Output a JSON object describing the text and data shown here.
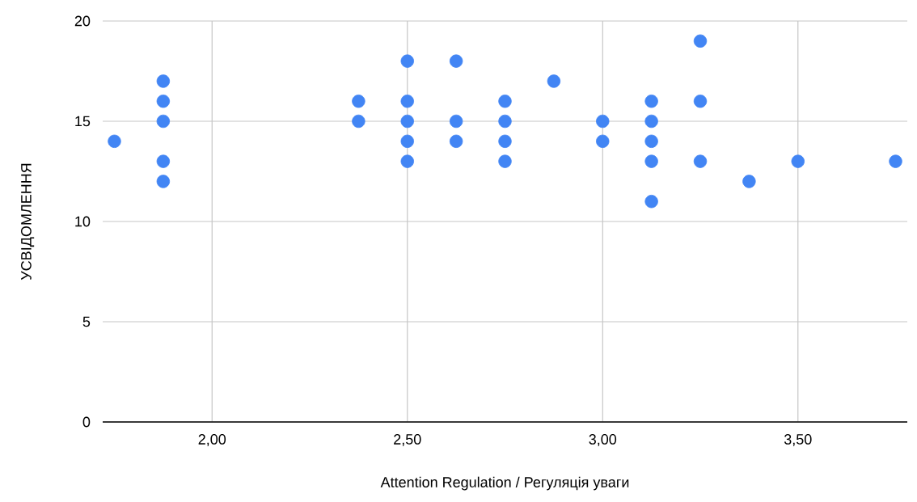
{
  "chart_data": {
    "type": "scatter",
    "xlabel": "Attention Regulation / Регуляція уваги",
    "ylabel": "УСВІДОМЛЕННЯ",
    "x": [
      1.75,
      1.875,
      1.875,
      1.875,
      1.875,
      1.875,
      2.375,
      2.375,
      2.5,
      2.5,
      2.5,
      2.5,
      2.5,
      2.625,
      2.625,
      2.625,
      2.75,
      2.75,
      2.75,
      2.75,
      2.875,
      3.0,
      3.0,
      3.125,
      3.125,
      3.125,
      3.125,
      3.125,
      3.25,
      3.25,
      3.25,
      3.375,
      3.5,
      3.75
    ],
    "values": [
      14,
      17,
      16,
      15,
      13,
      12,
      16,
      15,
      18,
      16,
      15,
      14,
      13,
      18,
      15,
      14,
      16,
      15,
      14,
      13,
      17,
      15,
      14,
      16,
      15,
      14,
      13,
      11,
      19,
      16,
      13,
      12,
      13,
      13
    ],
    "color": "#4285f4",
    "marker": "circle",
    "grid": true,
    "xlim": [
      1.72,
      3.78
    ],
    "ylim": [
      0,
      20
    ],
    "xticks": [
      {
        "value": 2,
        "label": "2,00"
      },
      {
        "value": 2.5,
        "label": "2,50"
      },
      {
        "value": 3,
        "label": "3,00"
      },
      {
        "value": 3.5,
        "label": "3,50"
      }
    ],
    "yticks": [
      0,
      5,
      10,
      15,
      20
    ]
  }
}
